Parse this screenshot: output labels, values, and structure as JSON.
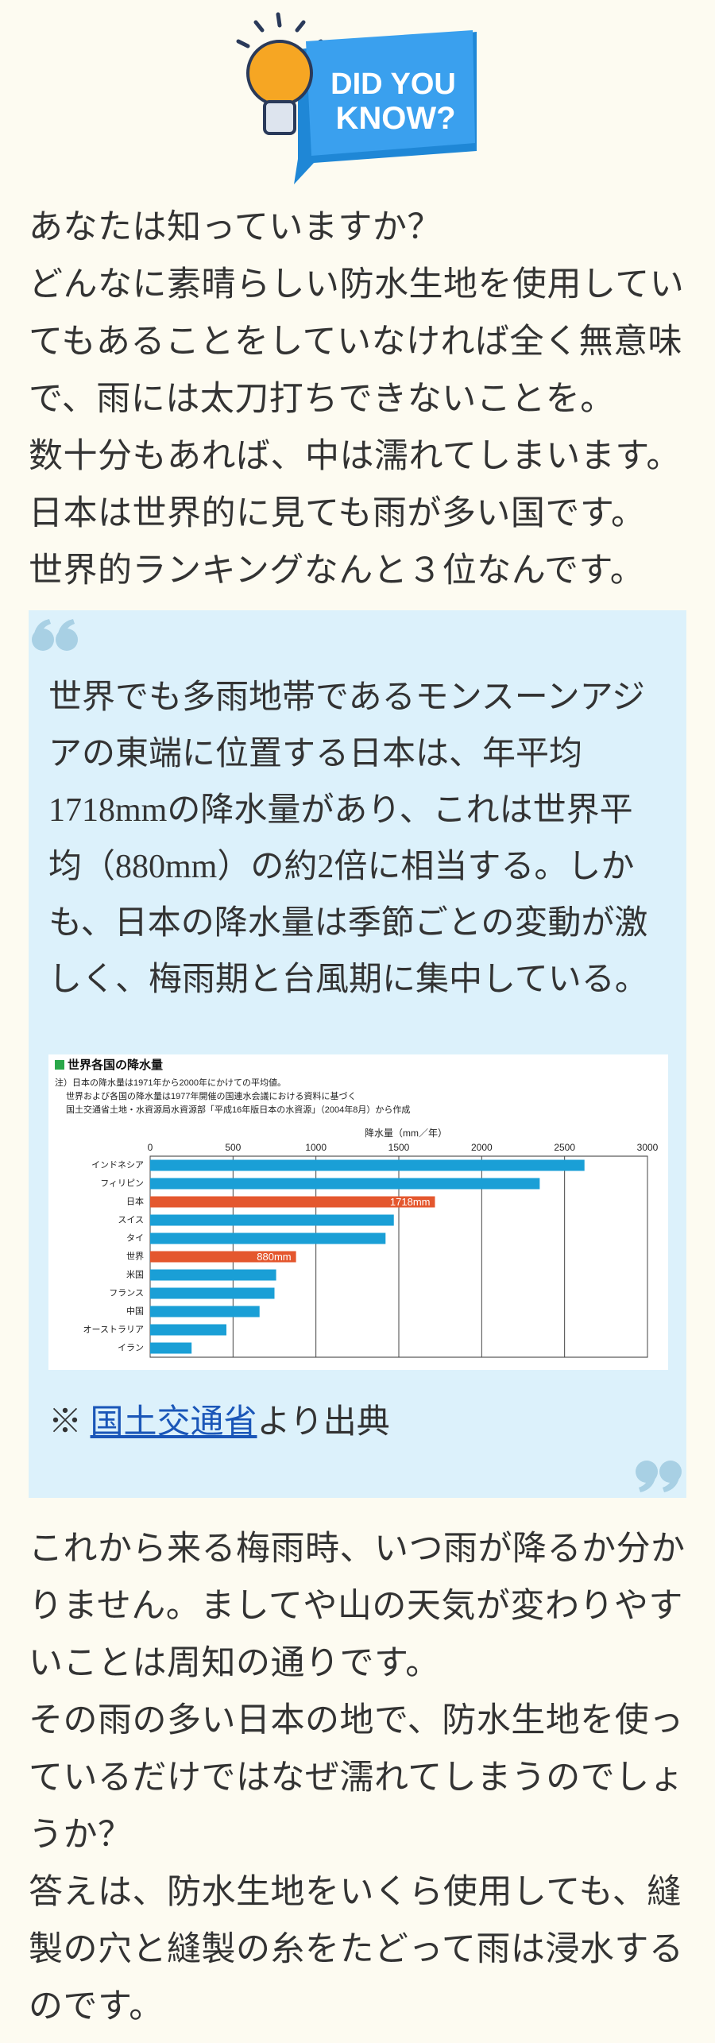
{
  "badge": {
    "lines": [
      "DID YOU",
      "KNOW?"
    ]
  },
  "intro": [
    "あなたは知っていますか？",
    "どんなに素晴らしい防水生地を使用していてもあることをしていなければ全く無意味で、雨には太刀打ちできないことを。",
    "数十分もあれば、中は濡れてしまいます。",
    "日本は世界的に見ても雨が多い国です。",
    "世界的ランキングなんと３位なんです。"
  ],
  "quote": {
    "text": "世界でも多雨地帯であるモンスーンアジアの東端に位置する日本は、年平均1718mmの降水量があり、これは世界平均（880mm）の約2倍に相当する。しかも、日本の降水量は季節ごとの変動が激しく、梅雨期と台風期に集中している。",
    "source": {
      "prefix": "※ ",
      "link": "国土交通省",
      "suffix": "より出典"
    }
  },
  "chart_data": {
    "type": "bar",
    "orientation": "horizontal",
    "title": "世界各国の降水量",
    "notes": [
      "注）日本の降水量は1971年から2000年にかけての平均値。",
      "世界および各国の降水量は1977年開催の国連水会議における資料に基づく",
      "国土交通省土地・水資源局水資源部「平成16年版日本の水資源」（2004年8月）から作成"
    ],
    "x_label": "降水量（mm／年）",
    "categories": [
      "インドネシア",
      "フィリピン",
      "日本",
      "スイス",
      "タイ",
      "世界",
      "米国",
      "フランス",
      "中国",
      "オーストラリア",
      "イラン"
    ],
    "values": [
      2620,
      2350,
      1718,
      1470,
      1420,
      880,
      760,
      750,
      660,
      460,
      250
    ],
    "value_labels": [
      null,
      null,
      "1718mm",
      null,
      null,
      "880mm",
      null,
      null,
      null,
      null,
      null
    ],
    "colors": [
      "#1a9fd6",
      "#1a9fd6",
      "#e4572e",
      "#1a9fd6",
      "#1a9fd6",
      "#e4572e",
      "#1a9fd6",
      "#1a9fd6",
      "#1a9fd6",
      "#1a9fd6",
      "#1a9fd6"
    ],
    "xlim": [
      0,
      3000
    ],
    "xticks": [
      0,
      500,
      1000,
      1500,
      2000,
      2500,
      3000
    ],
    "grid": true
  },
  "outro": [
    "これから来る梅雨時、いつ雨が降るか分かりません。ましてや山の天気が変わりやすいことは周知の通りです。",
    "その雨の多い日本の地で、防水生地を使っているだけではなぜ濡れてしまうのでしょうか？",
    "答えは、防水生地をいくら使用しても、縫製の穴と縫製の糸をたどって雨は浸水するのです。"
  ]
}
